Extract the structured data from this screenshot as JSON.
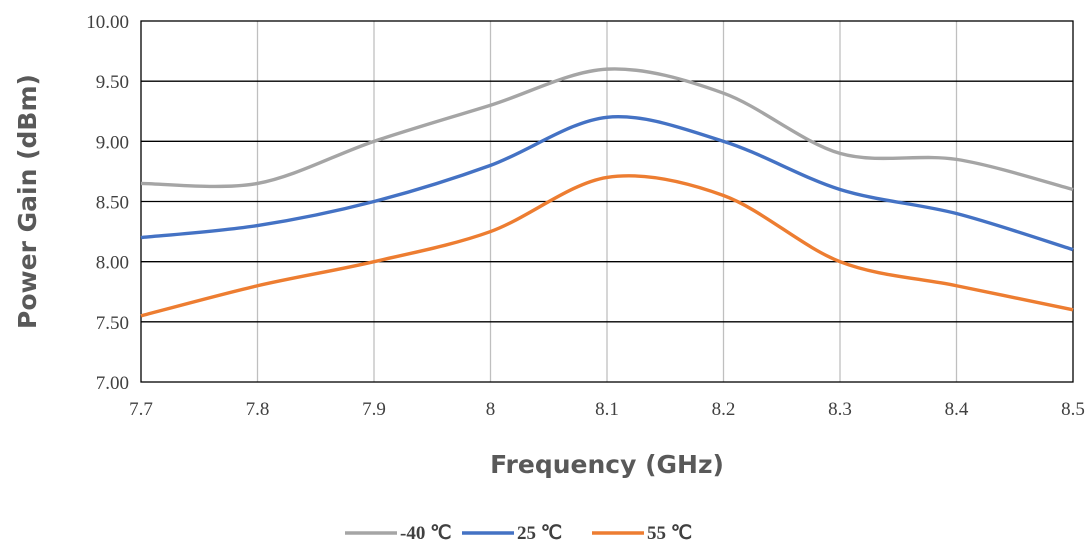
{
  "chart_data": {
    "type": "line",
    "title": "",
    "xlabel": "Frequency (GHz)",
    "ylabel": "Power Gain (dBm)",
    "xlim": [
      7.7,
      8.5
    ],
    "ylim": [
      7.0,
      10.0
    ],
    "x_ticks": [
      "7.7",
      "7.8",
      "7.9",
      "8",
      "8.1",
      "8.2",
      "8.3",
      "8.4",
      "8.5"
    ],
    "y_ticks": [
      "7.00",
      "7.50",
      "8.00",
      "8.50",
      "9.00",
      "9.50",
      "10.00"
    ],
    "grid": true,
    "legend_position": "bottom",
    "x": [
      7.7,
      7.8,
      7.9,
      8.0,
      8.1,
      8.2,
      8.3,
      8.4,
      8.5
    ],
    "series": [
      {
        "name": "-40 ℃",
        "color": "#a5a5a5",
        "values": [
          8.65,
          8.65,
          9.0,
          9.3,
          9.6,
          9.4,
          8.9,
          8.85,
          8.6
        ]
      },
      {
        "name": "25 ℃",
        "color": "#4472c4",
        "values": [
          8.2,
          8.3,
          8.5,
          8.8,
          9.2,
          9.0,
          8.6,
          8.4,
          8.1
        ]
      },
      {
        "name": "55 ℃",
        "color": "#ed7d31",
        "values": [
          7.55,
          7.8,
          8.0,
          8.25,
          8.7,
          8.55,
          8.0,
          7.8,
          7.6
        ]
      }
    ]
  }
}
